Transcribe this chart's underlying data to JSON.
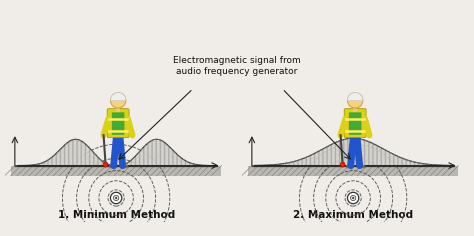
{
  "bg_color": "#f0ede8",
  "title1": "1. Minimum Method",
  "title2": "2. Maximum Method",
  "annotation_text": "Electromagnetic signal from\naudio frequency generator",
  "title_fontsize": 7.5,
  "annotation_fontsize": 6.5,
  "ground_y": 0.0,
  "cable_y": -1.6,
  "cable_x": 0.0,
  "radii": [
    0.4,
    0.85,
    1.35,
    1.95,
    2.65
  ],
  "person_x": 0.1,
  "xlim": [
    -5.5,
    5.5
  ],
  "ylim": [
    -2.8,
    7.5
  ]
}
